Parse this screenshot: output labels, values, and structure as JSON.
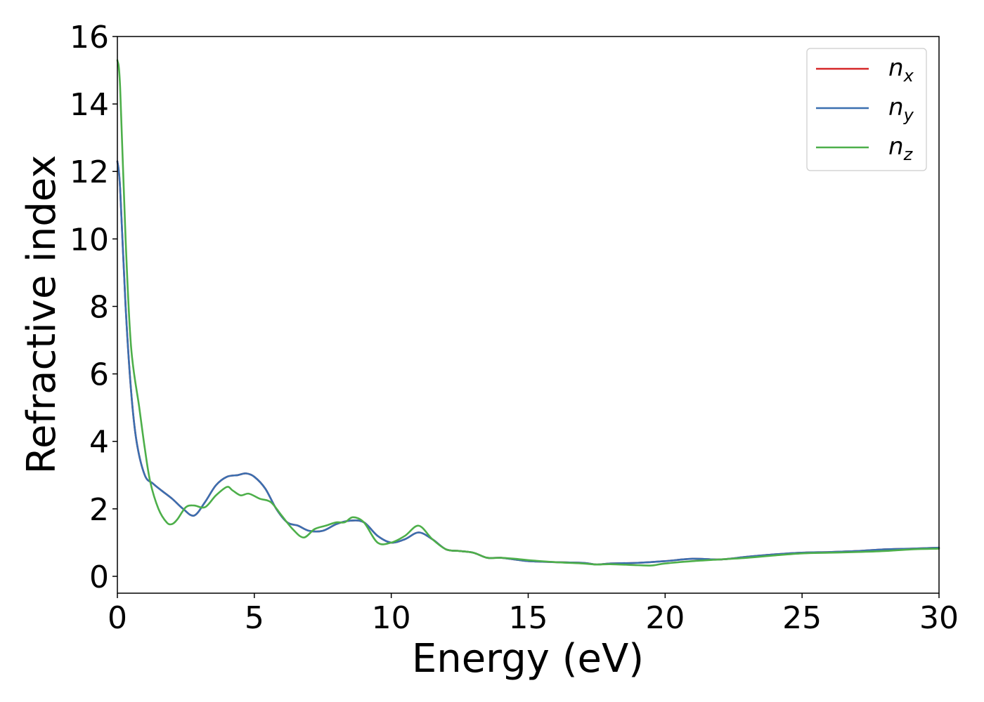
{
  "chart_data": {
    "type": "line",
    "xlabel": "Energy (eV)",
    "ylabel": "Refractive index",
    "xlim": [
      0,
      30
    ],
    "ylim": [
      -0.5,
      16
    ],
    "xticks": [
      0,
      5,
      10,
      15,
      20,
      25,
      30
    ],
    "yticks": [
      0,
      2,
      4,
      6,
      8,
      10,
      12,
      14,
      16
    ],
    "grid": false,
    "legend_position": "top-right",
    "series": [
      {
        "name": "n_x",
        "label_base": "n",
        "label_sub": "x",
        "color": "#d62728",
        "x": [
          0,
          0.1,
          0.3,
          0.5,
          0.7,
          1.0,
          1.3,
          1.6,
          2.0,
          2.4,
          2.8,
          3.2,
          3.6,
          4.0,
          4.4,
          4.7,
          5.0,
          5.4,
          5.8,
          6.2,
          6.6,
          7.0,
          7.5,
          8.0,
          8.5,
          9.0,
          9.5,
          10.0,
          10.5,
          11.0,
          11.5,
          12.0,
          12.5,
          13.0,
          13.5,
          14.0,
          14.5,
          15.0,
          16.0,
          17.0,
          17.5,
          18.0,
          19.0,
          20.0,
          21.0,
          22.0,
          23.0,
          24.0,
          25.0,
          26.0,
          27.0,
          28.0,
          29.0,
          30.0
        ],
        "y": [
          12.3,
          11.5,
          8.0,
          5.5,
          4.0,
          3.0,
          2.75,
          2.55,
          2.3,
          2.0,
          1.8,
          2.2,
          2.7,
          2.95,
          3.0,
          3.05,
          2.95,
          2.6,
          2.0,
          1.6,
          1.5,
          1.35,
          1.35,
          1.55,
          1.65,
          1.6,
          1.2,
          1.0,
          1.1,
          1.3,
          1.1,
          0.8,
          0.75,
          0.7,
          0.55,
          0.55,
          0.5,
          0.45,
          0.42,
          0.4,
          0.35,
          0.38,
          0.4,
          0.45,
          0.52,
          0.5,
          0.58,
          0.65,
          0.7,
          0.72,
          0.75,
          0.8,
          0.82,
          0.85
        ]
      },
      {
        "name": "n_y",
        "label_base": "n",
        "label_sub": "y",
        "color": "#3a6fb0",
        "x": [
          0,
          0.1,
          0.3,
          0.5,
          0.7,
          1.0,
          1.3,
          1.6,
          2.0,
          2.4,
          2.8,
          3.2,
          3.6,
          4.0,
          4.4,
          4.7,
          5.0,
          5.4,
          5.8,
          6.2,
          6.6,
          7.0,
          7.5,
          8.0,
          8.5,
          9.0,
          9.5,
          10.0,
          10.5,
          11.0,
          11.5,
          12.0,
          12.5,
          13.0,
          13.5,
          14.0,
          14.5,
          15.0,
          16.0,
          17.0,
          17.5,
          18.0,
          19.0,
          20.0,
          21.0,
          22.0,
          23.0,
          24.0,
          25.0,
          26.0,
          27.0,
          28.0,
          29.0,
          30.0
        ],
        "y": [
          12.3,
          11.5,
          8.0,
          5.5,
          4.0,
          3.0,
          2.75,
          2.55,
          2.3,
          2.0,
          1.8,
          2.2,
          2.7,
          2.95,
          3.0,
          3.05,
          2.95,
          2.6,
          2.0,
          1.6,
          1.5,
          1.35,
          1.35,
          1.55,
          1.65,
          1.6,
          1.2,
          1.0,
          1.1,
          1.3,
          1.1,
          0.8,
          0.75,
          0.7,
          0.55,
          0.55,
          0.5,
          0.45,
          0.42,
          0.4,
          0.35,
          0.38,
          0.4,
          0.45,
          0.52,
          0.5,
          0.58,
          0.65,
          0.7,
          0.72,
          0.75,
          0.8,
          0.82,
          0.85
        ]
      },
      {
        "name": "n_z",
        "label_base": "n",
        "label_sub": "z",
        "color": "#4daf4a",
        "x": [
          0,
          0.1,
          0.3,
          0.5,
          0.8,
          1.0,
          1.2,
          1.5,
          1.8,
          2.0,
          2.2,
          2.5,
          2.8,
          3.2,
          3.6,
          4.0,
          4.2,
          4.5,
          4.8,
          5.2,
          5.6,
          6.0,
          6.4,
          6.8,
          7.2,
          7.6,
          8.0,
          8.3,
          8.6,
          9.0,
          9.5,
          10.0,
          10.5,
          11.0,
          11.5,
          12.0,
          12.5,
          13.0,
          13.5,
          14.0,
          14.5,
          15.0,
          16.0,
          17.0,
          17.5,
          18.0,
          19.0,
          19.5,
          20.0,
          21.0,
          22.0,
          23.0,
          24.0,
          25.0,
          26.0,
          27.0,
          28.0,
          29.0,
          30.0
        ],
        "y": [
          15.3,
          14.5,
          10.0,
          6.8,
          5.0,
          3.8,
          2.8,
          2.0,
          1.6,
          1.55,
          1.7,
          2.05,
          2.1,
          2.05,
          2.4,
          2.65,
          2.55,
          2.4,
          2.45,
          2.3,
          2.2,
          1.8,
          1.4,
          1.15,
          1.4,
          1.5,
          1.6,
          1.6,
          1.75,
          1.6,
          1.0,
          1.0,
          1.2,
          1.5,
          1.1,
          0.8,
          0.75,
          0.7,
          0.55,
          0.55,
          0.52,
          0.48,
          0.42,
          0.38,
          0.35,
          0.36,
          0.33,
          0.32,
          0.38,
          0.45,
          0.5,
          0.55,
          0.62,
          0.68,
          0.7,
          0.72,
          0.75,
          0.8,
          0.82
        ]
      }
    ]
  }
}
